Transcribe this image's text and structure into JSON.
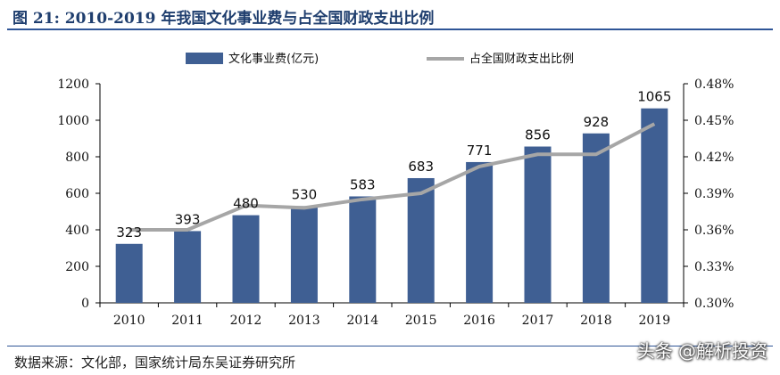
{
  "title": "图 21: 2010-2019 年我国文化事业费与占全国财政支出比例",
  "source": "数据来源：文化部，国家统计局东吴证券研究所",
  "watermark": "头条 @解析投资",
  "colors": {
    "bar": "#3f5f93",
    "line": "#a6a6a6",
    "title": "#1f3e6e",
    "rule": "#2f5597"
  },
  "chart_data": {
    "type": "bar",
    "categories": [
      "2010",
      "2011",
      "2012",
      "2013",
      "2014",
      "2015",
      "2016",
      "2017",
      "2018",
      "2019"
    ],
    "series": [
      {
        "name": "文化事业费(亿元)",
        "type": "bar",
        "axis": "left",
        "values": [
          323,
          393,
          480,
          530,
          583,
          683,
          771,
          856,
          928,
          1065
        ],
        "data_labels": [
          "323",
          "393",
          "480",
          "530",
          "583",
          "683",
          "771",
          "856",
          "928",
          "1065"
        ]
      },
      {
        "name": "占全国财政支出比例",
        "type": "line",
        "axis": "right",
        "values": [
          0.36,
          0.36,
          0.38,
          0.378,
          0.385,
          0.39,
          0.412,
          0.422,
          0.422,
          0.447
        ]
      }
    ],
    "ylim_left": [
      0,
      1200
    ],
    "yticks_left": [
      "0",
      "200",
      "400",
      "600",
      "800",
      "1000",
      "1200"
    ],
    "ylim_right": [
      0.3,
      0.48
    ],
    "yticks_right": [
      "0.30%",
      "0.33%",
      "0.36%",
      "0.39%",
      "0.42%",
      "0.45%",
      "0.48%"
    ],
    "grid": false,
    "legend_position": "top"
  }
}
